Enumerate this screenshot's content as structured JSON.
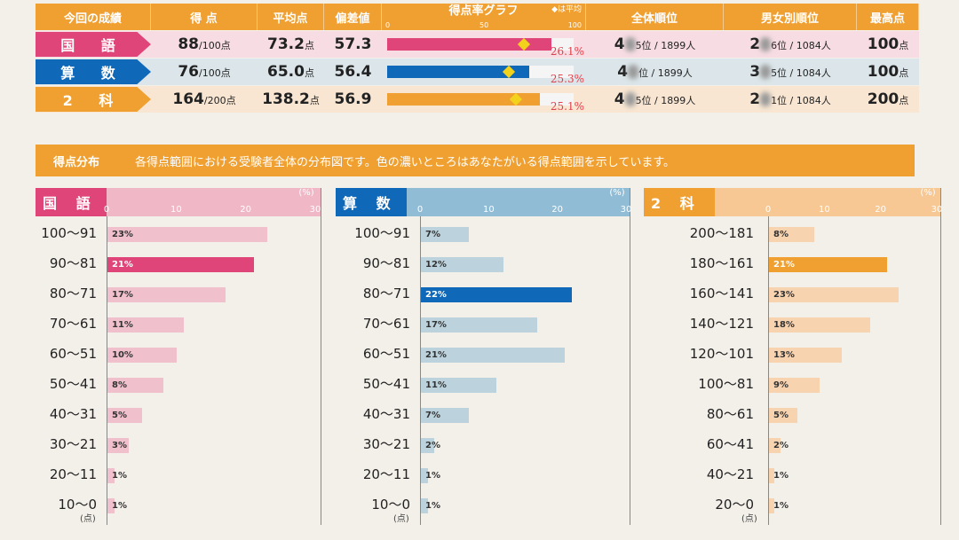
{
  "summary": {
    "headers": [
      "今回の成績",
      "得 点",
      "平均点",
      "偏差値",
      "得点率グラフ",
      "全体順位",
      "男女別順位",
      "最高点"
    ],
    "graph_scale": [
      "0",
      "50",
      "100"
    ],
    "avg_legend": "◆は平均",
    "rows": [
      {
        "subject": "国 語",
        "score": "88",
        "max": "/100点",
        "avg": "73.2",
        "avg_unit": "点",
        "dev": "57.3",
        "rate": 88,
        "avg_rate": 73.2,
        "note": "26.1%",
        "rank_a": "4",
        "rank_b": "5位 / 1899人",
        "gender_a": "2",
        "gender_b": "6位 / 1084人",
        "top": "100",
        "top_unit": "点",
        "color": "#e0457a",
        "bg": "#f7dde3"
      },
      {
        "subject": "算 数",
        "score": "76",
        "max": "/100点",
        "avg": "65.0",
        "avg_unit": "点",
        "dev": "56.4",
        "rate": 76,
        "avg_rate": 65,
        "note": "25.3%",
        "rank_a": "4",
        "rank_b": "位 / 1899人",
        "gender_a": "3",
        "gender_b": "5位 / 1084人",
        "top": "100",
        "top_unit": "点",
        "color": "#1068b8",
        "bg": "#dce6ea"
      },
      {
        "subject": "2 科",
        "score": "164",
        "max": "/200点",
        "avg": "138.2",
        "avg_unit": "点",
        "dev": "56.9",
        "rate": 82,
        "avg_rate": 69.1,
        "note": "25.1%",
        "rank_a": "4",
        "rank_b": "5位 / 1899人",
        "gender_a": "2",
        "gender_b": "1位 / 1084人",
        "top": "200",
        "top_unit": "点",
        "color": "#f0a030",
        "bg": "#f8e6d2"
      }
    ]
  },
  "distribution": {
    "title": "得点分布",
    "description": "各得点範囲における受験者全体の分布図です。色の濃いところはあなたがいる得点範囲を示しています。",
    "axis_unit": "(%)",
    "ticks": [
      "0",
      "10",
      "20",
      "30"
    ],
    "point_unit": "(点)",
    "panels": [
      {
        "subject": "国 語",
        "color": "#e0457a",
        "light": "#f0c0cc",
        "head": "#f0b7c6",
        "ranges": [
          "100～91",
          "90～81",
          "80～71",
          "70～61",
          "60～51",
          "50～41",
          "40～31",
          "30～21",
          "20～11",
          "10～0"
        ],
        "values": [
          23,
          21,
          17,
          11,
          10,
          8,
          5,
          3,
          1,
          1
        ],
        "labels": [
          "23%",
          "21%",
          "17%",
          "11%",
          "10%",
          "8%",
          "5%",
          "3%",
          "1%",
          "1%"
        ],
        "highlight": 1
      },
      {
        "subject": "算 数",
        "color": "#1068b8",
        "light": "#bcd3de",
        "head": "#90bcd6",
        "ranges": [
          "100～91",
          "90～81",
          "80～71",
          "70～61",
          "60～51",
          "50～41",
          "40～31",
          "30～21",
          "20～11",
          "10～0"
        ],
        "values": [
          7,
          12,
          22,
          17,
          21,
          11,
          7,
          2,
          1,
          1
        ],
        "labels": [
          "7%",
          "12%",
          "22%",
          "17%",
          "21%",
          "11%",
          "7%",
          "2%",
          "1%",
          "1%"
        ],
        "highlight": 2
      },
      {
        "subject": "2 科",
        "color": "#f0a030",
        "light": "#f8d3b0",
        "head": "#f7c894",
        "ranges": [
          "200～181",
          "180～161",
          "160～141",
          "140～121",
          "120～101",
          "100～81",
          "80～61",
          "60～41",
          "40～21",
          "20～0"
        ],
        "values": [
          8,
          21,
          23,
          18,
          13,
          9,
          5,
          2,
          1,
          1
        ],
        "labels": [
          "8%",
          "21%",
          "23%",
          "18%",
          "13%",
          "9%",
          "5%",
          "2%",
          "1%",
          "1%"
        ],
        "highlight": 1
      }
    ]
  }
}
